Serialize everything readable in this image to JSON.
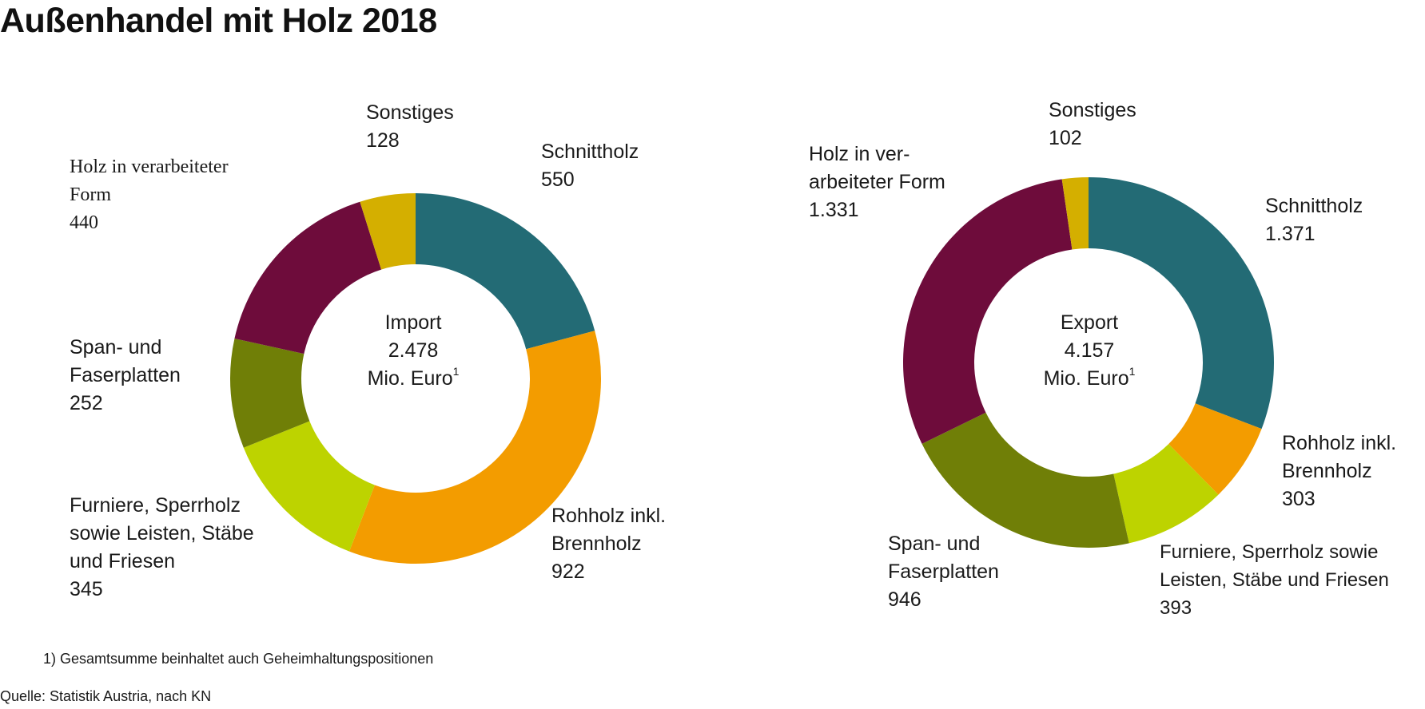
{
  "title": "Außenhandel mit Holz 2018",
  "colors": {
    "schnittholz": "#236b75",
    "rohholz": "#f39c00",
    "furniere": "#bdd300",
    "span": "#707f07",
    "holz_verarbeitet": "#6e0c3b",
    "sonstiges": "#d4af00"
  },
  "chart_data": [
    {
      "type": "pie",
      "variant": "donut",
      "center": {
        "line1": "Import",
        "line2": "2.478",
        "line3": "Mio. Euro",
        "superscript": "1"
      },
      "total": 2478,
      "unit": "Mio. Euro",
      "slices": [
        {
          "key": "schnittholz",
          "label_lines": [
            "Schnittholz"
          ],
          "display_value": "550",
          "value": 550
        },
        {
          "key": "rohholz",
          "label_lines": [
            "Rohholz inkl.",
            "Brennholz"
          ],
          "display_value": "922",
          "value": 922
        },
        {
          "key": "furniere",
          "label_lines": [
            "Furniere, Sperrholz",
            "sowie Leisten, Stäbe",
            "und Friesen"
          ],
          "display_value": "345",
          "value": 345
        },
        {
          "key": "span",
          "label_lines": [
            "Span- und",
            "Faserplatten"
          ],
          "display_value": "252",
          "value": 252
        },
        {
          "key": "holz_verarbeitet",
          "label_lines": [
            "Holz in verarbeiteter",
            "Form"
          ],
          "display_value": "440",
          "value": 440
        },
        {
          "key": "sonstiges",
          "label_lines": [
            "Sonstiges"
          ],
          "display_value": "128",
          "value": 128
        }
      ]
    },
    {
      "type": "pie",
      "variant": "donut",
      "center": {
        "line1": "Export",
        "line2": "4.157",
        "line3": "Mio. Euro",
        "superscript": "1"
      },
      "total": 4157,
      "unit": "Mio. Euro",
      "slices": [
        {
          "key": "schnittholz",
          "label_lines": [
            "Schnittholz"
          ],
          "display_value": "1.371",
          "value": 1371
        },
        {
          "key": "rohholz",
          "label_lines": [
            "Rohholz inkl.",
            "Brennholz"
          ],
          "display_value": "303",
          "value": 303
        },
        {
          "key": "furniere",
          "label_lines": [
            "Furniere, Sperrholz sowie",
            "Leisten, Stäbe und Friesen"
          ],
          "display_value": "393",
          "value": 393
        },
        {
          "key": "span",
          "label_lines": [
            "Span- und",
            "Faserplatten"
          ],
          "display_value": "946",
          "value": 946
        },
        {
          "key": "holz_verarbeitet",
          "label_lines": [
            "Holz in ver-",
            "arbeiteter Form"
          ],
          "display_value": "1.331",
          "value": 1331
        },
        {
          "key": "sonstiges",
          "label_lines": [
            "Sonstiges"
          ],
          "display_value": "102",
          "value": 102
        }
      ]
    }
  ],
  "footnote": "1) Gesamtsumme beinhaltet auch Geheimhaltungspositionen",
  "source": "Quelle: Statistik Austria, nach KN"
}
